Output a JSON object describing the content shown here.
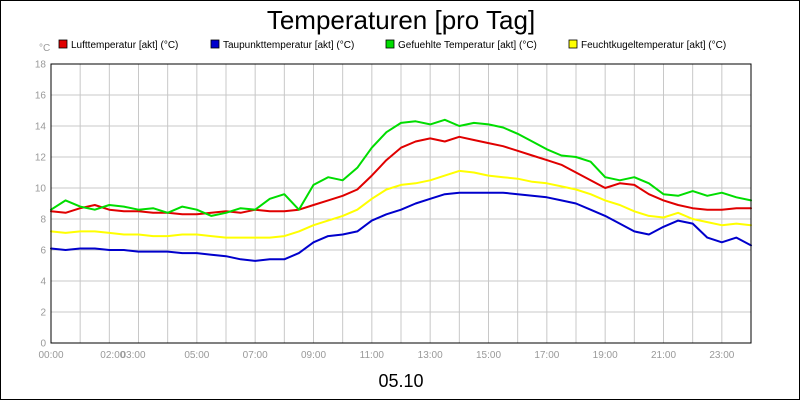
{
  "chart_data": {
    "type": "line",
    "title": "Temperaturen [pro Tag]",
    "unit": "°C",
    "date_label": "05.10",
    "ylim": [
      0,
      18
    ],
    "y_ticks": [
      "0",
      "2",
      "4",
      "6",
      "8",
      "10",
      "12",
      "14",
      "16",
      "18"
    ],
    "x_ticks": [
      {
        "h": 0,
        "label": "00:00"
      },
      {
        "h": 2,
        "label": "02:00"
      },
      {
        "h": 3,
        "label": "03:00"
      },
      {
        "h": 5,
        "label": "05:00"
      },
      {
        "h": 7,
        "label": "07:00"
      },
      {
        "h": 9,
        "label": "09:00"
      },
      {
        "h": 11,
        "label": "11:00"
      },
      {
        "h": 13,
        "label": "13:00"
      },
      {
        "h": 15,
        "label": "15:00"
      },
      {
        "h": 17,
        "label": "17:00"
      },
      {
        "h": 19,
        "label": "19:00"
      },
      {
        "h": 21,
        "label": "21:00"
      },
      {
        "h": 23,
        "label": "23:00"
      }
    ],
    "grid": true,
    "legend_position": "top",
    "x_hours": [
      0,
      0.5,
      1,
      1.5,
      2,
      2.5,
      3,
      3.5,
      4,
      4.5,
      5,
      5.5,
      6,
      6.5,
      7,
      7.5,
      8,
      8.5,
      9,
      9.5,
      10,
      10.5,
      11,
      11.5,
      12,
      12.5,
      13,
      13.5,
      14,
      14.5,
      15,
      15.5,
      16,
      16.5,
      17,
      17.5,
      18,
      18.5,
      19,
      19.5,
      20,
      20.5,
      21,
      21.5,
      22,
      22.5,
      23,
      23.5,
      24
    ],
    "series": [
      {
        "name": "Lufttemperatur [akt] (°C)",
        "color": "#e00000",
        "values": [
          8.5,
          8.4,
          8.7,
          8.9,
          8.6,
          8.5,
          8.5,
          8.4,
          8.4,
          8.3,
          8.3,
          8.4,
          8.5,
          8.4,
          8.6,
          8.5,
          8.5,
          8.6,
          8.9,
          9.2,
          9.5,
          9.9,
          10.8,
          11.8,
          12.6,
          13.0,
          13.2,
          13.0,
          13.3,
          13.1,
          12.9,
          12.7,
          12.4,
          12.1,
          11.8,
          11.5,
          11.0,
          10.5,
          10.0,
          10.3,
          10.2,
          9.6,
          9.2,
          8.9,
          8.7,
          8.6,
          8.6,
          8.7,
          8.7
        ]
      },
      {
        "name": "Taupunkttemperatur [akt] (°C)",
        "color": "#0000cc",
        "values": [
          6.1,
          6.0,
          6.1,
          6.1,
          6.0,
          6.0,
          5.9,
          5.9,
          5.9,
          5.8,
          5.8,
          5.7,
          5.6,
          5.4,
          5.3,
          5.4,
          5.4,
          5.8,
          6.5,
          6.9,
          7.0,
          7.2,
          7.9,
          8.3,
          8.6,
          9.0,
          9.3,
          9.6,
          9.7,
          9.7,
          9.7,
          9.7,
          9.6,
          9.5,
          9.4,
          9.2,
          9.0,
          8.6,
          8.2,
          7.7,
          7.2,
          7.0,
          7.5,
          7.9,
          7.7,
          6.8,
          6.5,
          6.8,
          6.3
        ]
      },
      {
        "name": "Gefuehlte Temperatur [akt] (°C)",
        "color": "#00dd00",
        "values": [
          8.6,
          9.2,
          8.8,
          8.6,
          8.9,
          8.8,
          8.6,
          8.7,
          8.4,
          8.8,
          8.6,
          8.2,
          8.4,
          8.7,
          8.6,
          9.3,
          9.6,
          8.6,
          10.2,
          10.7,
          10.5,
          11.3,
          12.6,
          13.6,
          14.2,
          14.3,
          14.1,
          14.4,
          14.0,
          14.2,
          14.1,
          13.9,
          13.5,
          13.0,
          12.5,
          12.1,
          12.0,
          11.7,
          10.7,
          10.5,
          10.7,
          10.3,
          9.6,
          9.5,
          9.8,
          9.5,
          9.7,
          9.4,
          9.2
        ]
      },
      {
        "name": "Feuchtkugeltemperatur [akt] (°C)",
        "color": "#ffff00",
        "values": [
          7.2,
          7.1,
          7.2,
          7.2,
          7.1,
          7.0,
          7.0,
          6.9,
          6.9,
          7.0,
          7.0,
          6.9,
          6.8,
          6.8,
          6.8,
          6.8,
          6.9,
          7.2,
          7.6,
          7.9,
          8.2,
          8.6,
          9.3,
          9.9,
          10.2,
          10.3,
          10.5,
          10.8,
          11.1,
          11.0,
          10.8,
          10.7,
          10.6,
          10.4,
          10.3,
          10.1,
          9.9,
          9.6,
          9.2,
          8.9,
          8.5,
          8.2,
          8.1,
          8.4,
          8.0,
          7.8,
          7.6,
          7.7,
          7.6
        ]
      }
    ]
  }
}
